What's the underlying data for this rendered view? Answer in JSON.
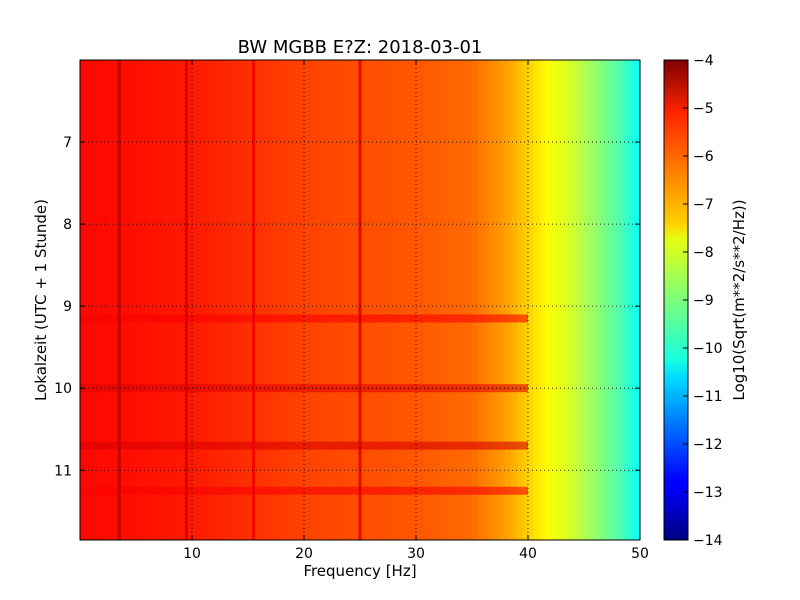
{
  "chart_data": {
    "type": "heatmap",
    "title": "BW MGBB E?Z: 2018-03-01",
    "xlabel": "Frequency [Hz]",
    "ylabel": "Lokalzeit (UTC + 1 Stunde)",
    "xlim": [
      0,
      50
    ],
    "ylim": [
      11.85,
      6.0
    ],
    "x_ticks": [
      10,
      20,
      30,
      40,
      50
    ],
    "y_ticks": [
      7,
      8,
      9,
      10,
      11
    ],
    "grid": true,
    "colormap": "jet",
    "colorbar": {
      "label": "Log10(Sqrt(m**2/s**2/Hz))",
      "range": [
        -14,
        -4
      ],
      "ticks": [
        -4,
        -5,
        -6,
        -7,
        -8,
        -9,
        -10,
        -11,
        -12,
        -13,
        -14
      ]
    },
    "spectral_profile": {
      "frequency": [
        0,
        5,
        10,
        15,
        20,
        25,
        30,
        35,
        38,
        40,
        42,
        44,
        46,
        48,
        50
      ],
      "level": [
        -5.3,
        -5.4,
        -5.5,
        -5.7,
        -5.9,
        -6.0,
        -6.1,
        -6.3,
        -6.8,
        -7.3,
        -7.8,
        -8.2,
        -8.8,
        -9.4,
        -10.2
      ]
    },
    "lines": [
      {
        "frequency": 3.5,
        "level": -4.6
      },
      {
        "frequency": 9.5,
        "level": -4.7
      },
      {
        "frequency": 15.5,
        "level": -5.1
      },
      {
        "frequency": 25.0,
        "level": -4.9
      }
    ],
    "bands": [
      {
        "time": 9.15,
        "level": -5.2
      },
      {
        "time": 10.0,
        "level": -5.0
      },
      {
        "time": 10.7,
        "level": -4.9
      },
      {
        "time": 11.25,
        "level": -5.2
      }
    ]
  }
}
